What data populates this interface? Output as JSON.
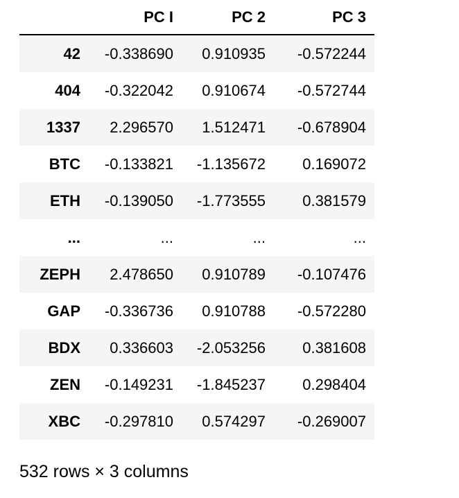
{
  "table": {
    "index_header": "",
    "columns": [
      "PC I",
      "PC 2",
      "PC 3"
    ],
    "rows": [
      {
        "index": "42",
        "values": [
          "-0.338690",
          "0.910935",
          "-0.572244"
        ]
      },
      {
        "index": "404",
        "values": [
          "-0.322042",
          "0.910674",
          "-0.572744"
        ]
      },
      {
        "index": "1337",
        "values": [
          "2.296570",
          "1.512471",
          "-0.678904"
        ]
      },
      {
        "index": "BTC",
        "values": [
          "-0.133821",
          "-1.135672",
          "0.169072"
        ]
      },
      {
        "index": "ETH",
        "values": [
          "-0.139050",
          "-1.773555",
          "0.381579"
        ]
      },
      {
        "index": "...",
        "values": [
          "...",
          "...",
          "..."
        ]
      },
      {
        "index": "ZEPH",
        "values": [
          "2.478650",
          "0.910789",
          "-0.107476"
        ]
      },
      {
        "index": "GAP",
        "values": [
          "-0.336736",
          "0.910788",
          "-0.572280"
        ]
      },
      {
        "index": "BDX",
        "values": [
          "0.336603",
          "-2.053256",
          "0.381608"
        ]
      },
      {
        "index": "ZEN",
        "values": [
          "-0.149231",
          "-1.845237",
          "0.298404"
        ]
      },
      {
        "index": "XBC",
        "values": [
          "-0.297810",
          "0.574297",
          "-0.269007"
        ]
      }
    ]
  },
  "shape_note": "532 rows × 3 columns",
  "colors": {
    "stripe": "#f5f5f5",
    "header_rule": "#000000",
    "text": "#000000"
  }
}
